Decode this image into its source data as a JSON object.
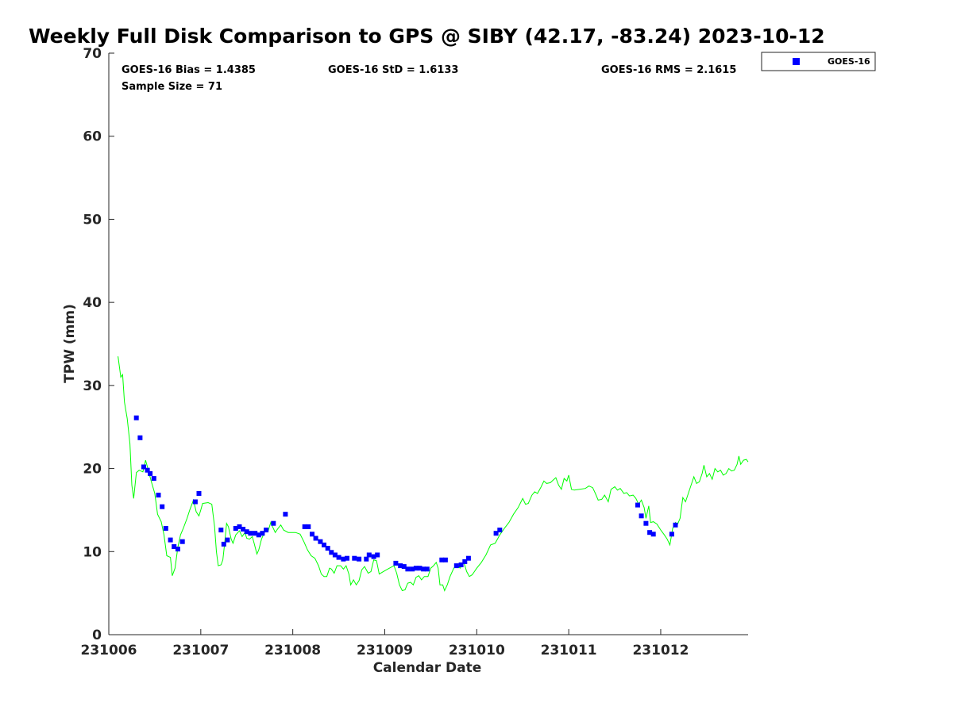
{
  "chart_data": {
    "type": "scatter",
    "title": "Weekly Full Disk Comparison to GPS @ SIBY (42.17, -83.24) 2023-10-12",
    "xlabel": "Calendar Date",
    "ylabel": "TPW (mm)",
    "xlim": [
      0,
      6.95
    ],
    "ylim": [
      0,
      70
    ],
    "x_ticks": [
      {
        "value": 0,
        "label": "231006"
      },
      {
        "value": 1,
        "label": "231007"
      },
      {
        "value": 2,
        "label": "231008"
      },
      {
        "value": 3,
        "label": "231009"
      },
      {
        "value": 4,
        "label": "231010"
      },
      {
        "value": 5,
        "label": "231011"
      },
      {
        "value": 6,
        "label": "231012"
      }
    ],
    "y_ticks": [
      0,
      10,
      20,
      30,
      40,
      50,
      60,
      70
    ],
    "grid": false,
    "legend_position": "outside-top-right",
    "stats": {
      "bias": "GOES-16 Bias = 1.4385",
      "std": "GOES-16 StD = 1.6133",
      "rms": "GOES-16 RMS = 2.1615",
      "sample": "Sample Size = 71"
    },
    "series": [
      {
        "name": "GOES-16",
        "kind": "scatter",
        "color": "#0000ff",
        "points": [
          [
            0.3,
            26.1
          ],
          [
            0.34,
            23.7
          ],
          [
            0.38,
            20.2
          ],
          [
            0.42,
            19.8
          ],
          [
            0.45,
            19.4
          ],
          [
            0.49,
            18.8
          ],
          [
            0.54,
            16.8
          ],
          [
            0.58,
            15.4
          ],
          [
            0.62,
            12.8
          ],
          [
            0.67,
            11.4
          ],
          [
            0.71,
            10.6
          ],
          [
            0.75,
            10.3
          ],
          [
            0.8,
            11.2
          ],
          [
            0.94,
            16.0
          ],
          [
            0.98,
            17.0
          ],
          [
            1.22,
            12.6
          ],
          [
            1.25,
            10.9
          ],
          [
            1.29,
            11.4
          ],
          [
            1.38,
            12.8
          ],
          [
            1.42,
            13.0
          ],
          [
            1.46,
            12.7
          ],
          [
            1.5,
            12.4
          ],
          [
            1.54,
            12.2
          ],
          [
            1.59,
            12.2
          ],
          [
            1.63,
            12.0
          ],
          [
            1.67,
            12.2
          ],
          [
            1.71,
            12.6
          ],
          [
            1.79,
            13.4
          ],
          [
            1.92,
            14.5
          ],
          [
            2.13,
            13.0
          ],
          [
            2.17,
            13.0
          ],
          [
            2.21,
            12.1
          ],
          [
            2.25,
            11.6
          ],
          [
            2.3,
            11.2
          ],
          [
            2.34,
            10.8
          ],
          [
            2.38,
            10.4
          ],
          [
            2.42,
            9.9
          ],
          [
            2.46,
            9.6
          ],
          [
            2.5,
            9.3
          ],
          [
            2.55,
            9.1
          ],
          [
            2.59,
            9.2
          ],
          [
            2.67,
            9.2
          ],
          [
            2.72,
            9.1
          ],
          [
            2.8,
            9.1
          ],
          [
            2.83,
            9.6
          ],
          [
            2.88,
            9.4
          ],
          [
            2.92,
            9.6
          ],
          [
            3.12,
            8.6
          ],
          [
            3.17,
            8.3
          ],
          [
            3.21,
            8.2
          ],
          [
            3.25,
            7.9
          ],
          [
            3.3,
            7.9
          ],
          [
            3.34,
            8.0
          ],
          [
            3.38,
            8.0
          ],
          [
            3.42,
            7.9
          ],
          [
            3.46,
            7.9
          ],
          [
            3.62,
            9.0
          ],
          [
            3.66,
            9.0
          ],
          [
            3.78,
            8.3
          ],
          [
            3.83,
            8.4
          ],
          [
            3.87,
            8.8
          ],
          [
            3.91,
            9.2
          ],
          [
            4.21,
            12.2
          ],
          [
            4.25,
            12.6
          ],
          [
            5.75,
            15.6
          ],
          [
            5.79,
            14.3
          ],
          [
            5.84,
            13.4
          ],
          [
            5.88,
            12.3
          ],
          [
            5.92,
            12.1
          ],
          [
            6.12,
            12.1
          ],
          [
            6.16,
            13.2
          ]
        ]
      },
      {
        "name": "",
        "kind": "line",
        "color": "#00ff00",
        "points": [
          [
            0.1,
            33.5
          ],
          [
            0.13,
            31.0
          ],
          [
            0.15,
            31.3
          ],
          [
            0.17,
            28.0
          ],
          [
            0.2,
            26.0
          ],
          [
            0.23,
            23.0
          ],
          [
            0.25,
            18.0
          ],
          [
            0.27,
            16.4
          ],
          [
            0.3,
            19.5
          ],
          [
            0.33,
            19.8
          ],
          [
            0.37,
            19.6
          ],
          [
            0.4,
            21.0
          ],
          [
            0.43,
            19.8
          ],
          [
            0.46,
            18.5
          ],
          [
            0.5,
            17.0
          ],
          [
            0.53,
            14.5
          ],
          [
            0.57,
            13.6
          ],
          [
            0.6,
            12.0
          ],
          [
            0.63,
            9.5
          ],
          [
            0.67,
            9.3
          ],
          [
            0.69,
            7.1
          ],
          [
            0.72,
            8.0
          ],
          [
            0.75,
            10.5
          ],
          [
            0.78,
            12.0
          ],
          [
            0.81,
            12.8
          ],
          [
            0.85,
            14.0
          ],
          [
            0.88,
            15.0
          ],
          [
            0.92,
            16.2
          ],
          [
            0.95,
            14.8
          ],
          [
            0.98,
            14.3
          ],
          [
            1.0,
            15.0
          ],
          [
            1.02,
            15.8
          ],
          [
            1.08,
            15.9
          ],
          [
            1.12,
            15.7
          ],
          [
            1.15,
            13.0
          ],
          [
            1.17,
            10.0
          ],
          [
            1.19,
            8.3
          ],
          [
            1.22,
            8.4
          ],
          [
            1.24,
            9.0
          ],
          [
            1.26,
            11.0
          ],
          [
            1.28,
            13.4
          ],
          [
            1.3,
            13.0
          ],
          [
            1.33,
            11.5
          ],
          [
            1.35,
            11.0
          ],
          [
            1.38,
            12.0
          ],
          [
            1.42,
            12.5
          ],
          [
            1.45,
            11.8
          ],
          [
            1.48,
            12.3
          ],
          [
            1.5,
            11.6
          ],
          [
            1.53,
            11.5
          ],
          [
            1.56,
            11.8
          ],
          [
            1.58,
            11.0
          ],
          [
            1.61,
            9.7
          ],
          [
            1.63,
            10.2
          ],
          [
            1.66,
            11.5
          ],
          [
            1.7,
            12.5
          ],
          [
            1.73,
            12.4
          ],
          [
            1.76,
            13.5
          ],
          [
            1.78,
            13.0
          ],
          [
            1.81,
            12.3
          ],
          [
            1.84,
            12.8
          ],
          [
            1.87,
            13.2
          ],
          [
            1.9,
            12.6
          ],
          [
            1.95,
            12.3
          ],
          [
            2.03,
            12.3
          ],
          [
            2.08,
            12.1
          ],
          [
            2.12,
            11.2
          ],
          [
            2.16,
            10.2
          ],
          [
            2.2,
            9.5
          ],
          [
            2.24,
            9.2
          ],
          [
            2.28,
            8.3
          ],
          [
            2.31,
            7.3
          ],
          [
            2.34,
            7.0
          ],
          [
            2.37,
            7.0
          ],
          [
            2.4,
            8.0
          ],
          [
            2.42,
            7.9
          ],
          [
            2.45,
            7.4
          ],
          [
            2.48,
            8.3
          ],
          [
            2.52,
            8.3
          ],
          [
            2.55,
            7.9
          ],
          [
            2.58,
            8.3
          ],
          [
            2.61,
            7.3
          ],
          [
            2.63,
            6.0
          ],
          [
            2.66,
            6.6
          ],
          [
            2.69,
            6.0
          ],
          [
            2.72,
            6.5
          ],
          [
            2.75,
            7.8
          ],
          [
            2.78,
            8.2
          ],
          [
            2.82,
            7.4
          ],
          [
            2.85,
            7.6
          ],
          [
            2.88,
            9.0
          ],
          [
            2.91,
            8.9
          ],
          [
            2.94,
            7.3
          ],
          [
            3.0,
            7.7
          ],
          [
            3.05,
            8.0
          ],
          [
            3.1,
            8.3
          ],
          [
            3.13,
            7.4
          ],
          [
            3.16,
            6.0
          ],
          [
            3.19,
            5.3
          ],
          [
            3.22,
            5.4
          ],
          [
            3.25,
            6.2
          ],
          [
            3.28,
            6.3
          ],
          [
            3.31,
            6.0
          ],
          [
            3.34,
            6.9
          ],
          [
            3.37,
            7.1
          ],
          [
            3.4,
            6.6
          ],
          [
            3.43,
            7.0
          ],
          [
            3.47,
            7.0
          ],
          [
            3.5,
            8.0
          ],
          [
            3.53,
            8.3
          ],
          [
            3.56,
            8.7
          ],
          [
            3.58,
            8.0
          ],
          [
            3.6,
            6.0
          ],
          [
            3.63,
            6.0
          ],
          [
            3.65,
            5.3
          ],
          [
            3.68,
            6.0
          ],
          [
            3.71,
            7.0
          ],
          [
            3.75,
            8.0
          ],
          [
            3.78,
            8.3
          ],
          [
            3.82,
            8.0
          ],
          [
            3.86,
            8.7
          ],
          [
            3.89,
            7.6
          ],
          [
            3.92,
            7.0
          ],
          [
            3.95,
            7.2
          ],
          [
            4.0,
            8.0
          ],
          [
            4.05,
            8.7
          ],
          [
            4.1,
            9.6
          ],
          [
            4.15,
            10.8
          ],
          [
            4.2,
            11.0
          ],
          [
            4.25,
            12.0
          ],
          [
            4.3,
            12.8
          ],
          [
            4.35,
            13.5
          ],
          [
            4.4,
            14.5
          ],
          [
            4.45,
            15.3
          ],
          [
            4.5,
            16.4
          ],
          [
            4.53,
            15.7
          ],
          [
            4.56,
            15.8
          ],
          [
            4.6,
            16.8
          ],
          [
            4.63,
            17.2
          ],
          [
            4.66,
            17.0
          ],
          [
            4.7,
            17.8
          ],
          [
            4.73,
            18.5
          ],
          [
            4.76,
            18.2
          ],
          [
            4.8,
            18.3
          ],
          [
            4.83,
            18.6
          ],
          [
            4.86,
            18.9
          ],
          [
            4.89,
            18.0
          ],
          [
            4.92,
            17.5
          ],
          [
            4.95,
            18.8
          ],
          [
            4.98,
            18.5
          ],
          [
            5.0,
            19.2
          ],
          [
            5.03,
            17.5
          ],
          [
            5.06,
            17.4
          ],
          [
            5.12,
            17.5
          ],
          [
            5.18,
            17.6
          ],
          [
            5.22,
            17.9
          ],
          [
            5.26,
            17.7
          ],
          [
            5.29,
            17.0
          ],
          [
            5.32,
            16.2
          ],
          [
            5.36,
            16.3
          ],
          [
            5.39,
            16.8
          ],
          [
            5.43,
            16.0
          ],
          [
            5.46,
            17.5
          ],
          [
            5.5,
            17.8
          ],
          [
            5.53,
            17.4
          ],
          [
            5.56,
            17.6
          ],
          [
            5.6,
            17.0
          ],
          [
            5.63,
            17.1
          ],
          [
            5.66,
            16.7
          ],
          [
            5.7,
            16.8
          ],
          [
            5.73,
            16.4
          ],
          [
            5.76,
            15.7
          ],
          [
            5.79,
            16.2
          ],
          [
            5.82,
            15.3
          ],
          [
            5.84,
            14.0
          ],
          [
            5.87,
            15.5
          ],
          [
            5.89,
            13.5
          ],
          [
            5.92,
            13.6
          ],
          [
            5.96,
            13.3
          ],
          [
            6.0,
            12.6
          ],
          [
            6.04,
            12.0
          ],
          [
            6.07,
            11.5
          ],
          [
            6.1,
            10.8
          ],
          [
            6.13,
            12.8
          ],
          [
            6.16,
            13.5
          ],
          [
            6.18,
            13.2
          ],
          [
            6.21,
            14.0
          ],
          [
            6.24,
            16.5
          ],
          [
            6.27,
            16.0
          ],
          [
            6.3,
            17.0
          ],
          [
            6.33,
            18.0
          ],
          [
            6.36,
            19.0
          ],
          [
            6.39,
            18.2
          ],
          [
            6.42,
            18.4
          ],
          [
            6.45,
            19.4
          ],
          [
            6.47,
            20.4
          ],
          [
            6.5,
            19.0
          ],
          [
            6.53,
            19.4
          ],
          [
            6.56,
            18.7
          ],
          [
            6.59,
            20.0
          ],
          [
            6.62,
            19.6
          ],
          [
            6.65,
            19.8
          ],
          [
            6.68,
            19.2
          ],
          [
            6.71,
            19.4
          ],
          [
            6.74,
            20.0
          ],
          [
            6.77,
            19.7
          ],
          [
            6.8,
            19.8
          ],
          [
            6.83,
            20.5
          ],
          [
            6.85,
            21.5
          ],
          [
            6.87,
            20.5
          ],
          [
            6.9,
            21.0
          ],
          [
            6.93,
            21.1
          ],
          [
            6.95,
            20.8
          ]
        ]
      }
    ]
  }
}
